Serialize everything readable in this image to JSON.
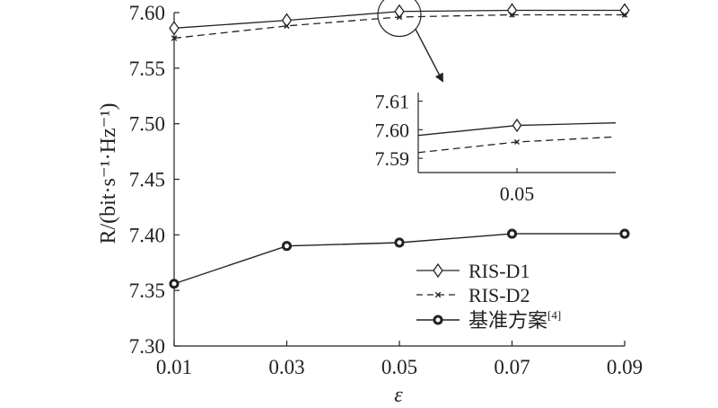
{
  "chart_data": {
    "type": "line",
    "xlabel": "ε",
    "ylabel": "R/(bit·s⁻¹·Hz⁻¹)",
    "x": [
      0.01,
      0.03,
      0.05,
      0.07,
      0.09
    ],
    "xlim": [
      0.01,
      0.09
    ],
    "ylim": [
      7.3,
      7.6
    ],
    "x_ticks": [
      "0.01",
      "0.03",
      "0.05",
      "0.07",
      "0.09"
    ],
    "y_ticks": [
      "7.30",
      "7.35",
      "7.40",
      "7.45",
      "7.50",
      "7.55",
      "7.60"
    ],
    "grid": false,
    "legend_position": "lower-right",
    "series": [
      {
        "name": "RIS-D1",
        "values": [
          7.586,
          7.593,
          7.601,
          7.602,
          7.602
        ],
        "line": "solid",
        "marker": "diamond"
      },
      {
        "name": "RIS-D2",
        "values": [
          7.577,
          7.588,
          7.596,
          7.598,
          7.598
        ],
        "line": "dashed",
        "marker": "x"
      },
      {
        "name": "基准方案",
        "name_superscript": "[4]",
        "values": [
          7.356,
          7.39,
          7.393,
          7.401,
          7.401
        ],
        "line": "solid",
        "marker": "circle"
      }
    ],
    "inset": {
      "x_ticks": [
        "0.05"
      ],
      "y_ticks": [
        "7.61",
        "7.60",
        "7.59"
      ],
      "xlim": [
        0.04,
        0.06
      ],
      "ylim": [
        7.585,
        7.613
      ],
      "series": [
        {
          "name": "RIS-D1",
          "x": [
            0.04,
            0.05,
            0.06
          ],
          "values": [
            7.598,
            7.6015,
            7.6024
          ]
        },
        {
          "name": "RIS-D2",
          "x": [
            0.04,
            0.05,
            0.06
          ],
          "values": [
            7.592,
            7.5957,
            7.5975
          ]
        }
      ]
    }
  }
}
